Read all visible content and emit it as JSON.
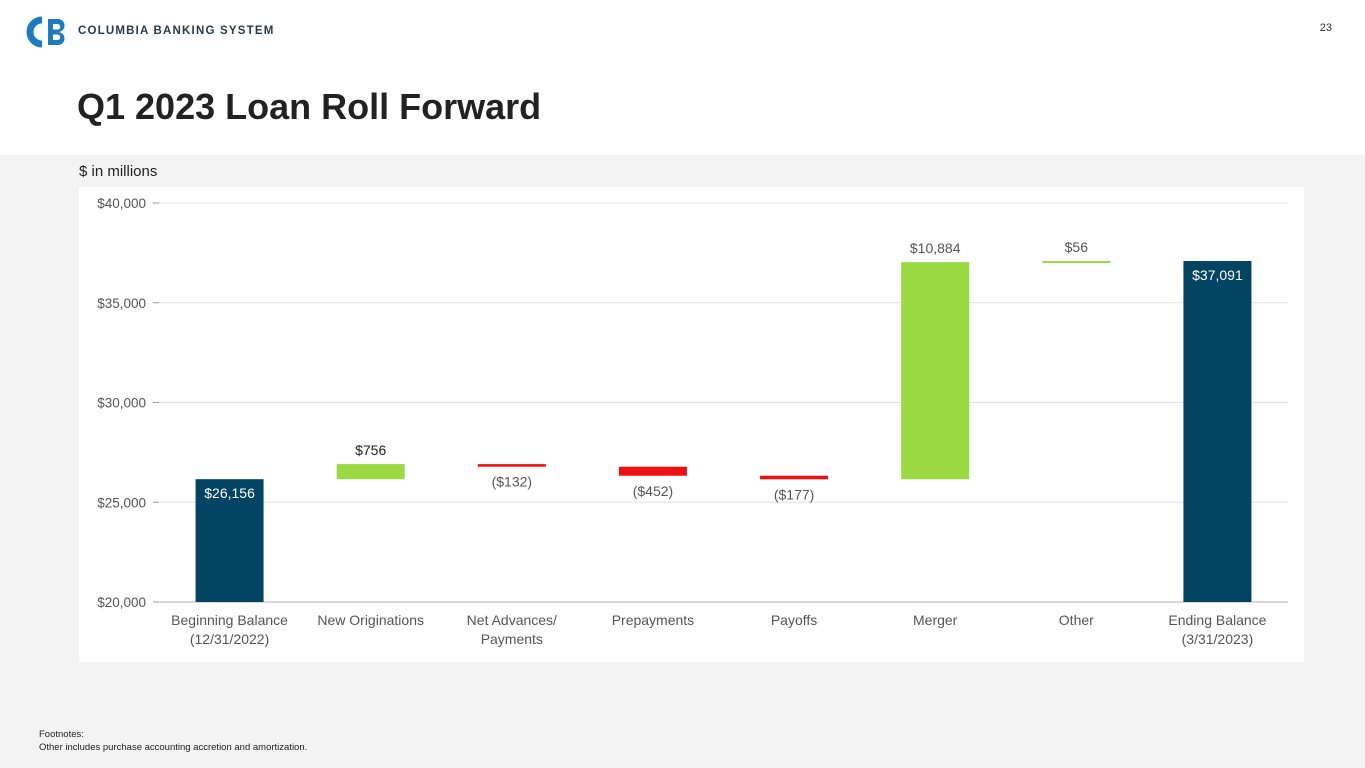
{
  "header": {
    "logo_text": "COLUMBIA BANKING SYSTEM",
    "page_number": "23",
    "title": "Q1 2023 Loan Roll Forward"
  },
  "colors": {
    "brand": "#1f7bbf",
    "navy": "#024462",
    "green": "#9ad941",
    "red": "#ee1111",
    "green_label": "#555555",
    "axis": "#555555"
  },
  "chart_data": {
    "type": "bar",
    "subtype": "waterfall",
    "units_label": "$ in millions",
    "categories": [
      [
        "Beginning Balance",
        "(12/31/2022)"
      ],
      [
        "New Originations"
      ],
      [
        "Net Advances/",
        "Payments"
      ],
      [
        "Prepayments"
      ],
      [
        "Payoffs"
      ],
      [
        "Merger"
      ],
      [
        "Other"
      ],
      [
        "Ending Balance",
        "(3/31/2023)"
      ]
    ],
    "values": [
      26156,
      756,
      -132,
      -452,
      -177,
      10884,
      56,
      37091
    ],
    "kinds": [
      "total",
      "increase",
      "decrease",
      "decrease",
      "decrease",
      "increase",
      "increase",
      "total"
    ],
    "data_labels": [
      "$26,156",
      "$756",
      "($132)",
      "($452)",
      "($177)",
      "$10,884",
      "$56",
      "$37,091"
    ],
    "ylim": [
      20000,
      40000
    ],
    "yticks": [
      20000,
      25000,
      30000,
      35000,
      40000
    ],
    "ytick_labels": [
      "$20,000",
      "$25,000",
      "$30,000",
      "$35,000",
      "$40,000"
    ],
    "grid": true,
    "legend": "none"
  },
  "footnotes": {
    "heading": "Footnotes:",
    "text": "Other includes purchase accounting accretion and amortization."
  }
}
